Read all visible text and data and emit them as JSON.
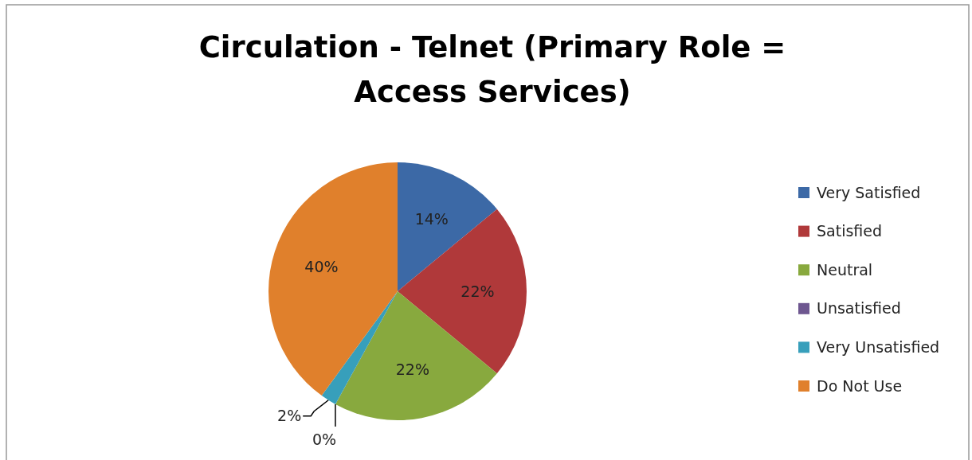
{
  "chart_data": {
    "type": "pie",
    "title": "Circulation - Telnet (Primary Role = Access Services)",
    "categories": [
      "Very Satisfied",
      "Satisfied",
      "Neutral",
      "Unsatisfied",
      "Very Unsatisfied",
      "Do Not Use"
    ],
    "values": [
      14,
      22,
      22,
      0,
      2,
      40
    ],
    "colors": [
      "#3c69a6",
      "#b0393a",
      "#88a93e",
      "#6e5790",
      "#379fbb",
      "#e0802c"
    ],
    "value_labels": [
      "14%",
      "22%",
      "22%",
      "0%",
      "2%",
      "40%"
    ],
    "legend": "right"
  }
}
